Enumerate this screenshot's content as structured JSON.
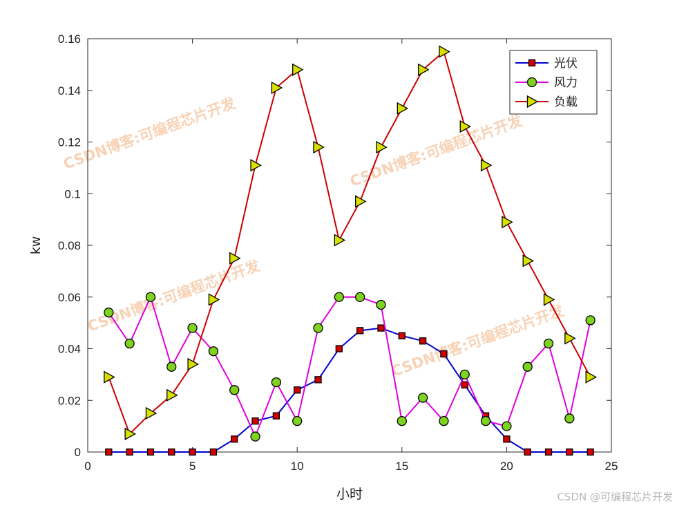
{
  "chart_data": {
    "type": "line",
    "xlabel": "小时",
    "ylabel": "kw",
    "xlim": [
      0,
      25
    ],
    "ylim": [
      0,
      0.16
    ],
    "xticks": [
      0,
      5,
      10,
      15,
      20,
      25
    ],
    "yticks": [
      0,
      0.02,
      0.04,
      0.06,
      0.08,
      0.1,
      0.12,
      0.14,
      0.16
    ],
    "grid": false,
    "legend_position": "top-right",
    "x": [
      1,
      2,
      3,
      4,
      5,
      6,
      7,
      8,
      9,
      10,
      11,
      12,
      13,
      14,
      15,
      16,
      17,
      18,
      19,
      20,
      21,
      22,
      23,
      24
    ],
    "series": [
      {
        "name": "光伏",
        "color": "#0000cc",
        "marker": "square",
        "marker_fill": "#d40000",
        "values": [
          0,
          0,
          0,
          0,
          0,
          0,
          0.005,
          0.012,
          0.014,
          0.024,
          0.028,
          0.04,
          0.047,
          0.048,
          0.045,
          0.043,
          0.038,
          0.026,
          0.014,
          0.005,
          0,
          0,
          0,
          0
        ]
      },
      {
        "name": "风力",
        "color": "#e000e0",
        "marker": "circle",
        "marker_fill": "#7ed321",
        "values": [
          0.054,
          0.042,
          0.06,
          0.033,
          0.048,
          0.039,
          0.024,
          0.006,
          0.027,
          0.012,
          0.048,
          0.06,
          0.06,
          0.057,
          0.012,
          0.021,
          0.012,
          0.03,
          0.012,
          0.01,
          0.033,
          0.042,
          0.013,
          0.051
        ]
      },
      {
        "name": "负载",
        "color": "#cc0000",
        "marker": "triangle-right",
        "marker_fill": "#d8e000",
        "values": [
          0.029,
          0.007,
          0.015,
          0.022,
          0.034,
          0.059,
          0.075,
          0.111,
          0.141,
          0.148,
          0.118,
          0.082,
          0.097,
          0.118,
          0.133,
          0.148,
          0.155,
          0.126,
          0.111,
          0.089,
          0.074,
          0.059,
          0.044,
          0.029
        ]
      }
    ]
  },
  "watermarks": [
    "CSDN博客:可编程芯片开发",
    "CSDN博客:可编程芯片开发",
    "CSDN博客:可编程芯片开发",
    "CSDN博客:可编程芯片开发"
  ],
  "credit": "CSDN @可编程芯片开发"
}
